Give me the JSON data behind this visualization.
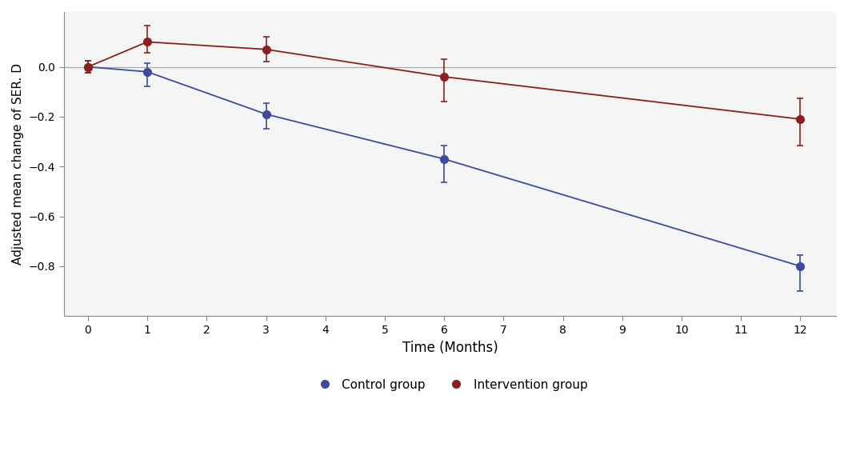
{
  "control_x": [
    0,
    1,
    3,
    6,
    12
  ],
  "control_y": [
    0.0,
    -0.02,
    -0.19,
    -0.37,
    -0.8
  ],
  "control_yerr_upper": [
    0.025,
    0.035,
    0.045,
    0.055,
    0.045
  ],
  "control_yerr_lower": [
    0.025,
    0.06,
    0.06,
    0.095,
    0.1
  ],
  "intervention_x": [
    0,
    1,
    3,
    6,
    12
  ],
  "intervention_y": [
    0.0,
    0.1,
    0.07,
    -0.04,
    -0.21
  ],
  "intervention_yerr_upper": [
    0.025,
    0.065,
    0.05,
    0.07,
    0.085
  ],
  "intervention_yerr_lower": [
    0.025,
    0.045,
    0.05,
    0.1,
    0.105
  ],
  "control_color": "#3d4b9e",
  "intervention_color": "#8b2020",
  "xlabel": "Time (Months)",
  "ylabel": "Adjusted mean change of SER. D",
  "xlim": [
    -0.4,
    12.6
  ],
  "ylim": [
    -1.0,
    0.22
  ],
  "yticks": [
    0.0,
    -0.2,
    -0.4,
    -0.6,
    -0.8
  ],
  "xticks": [
    0,
    1,
    2,
    3,
    4,
    5,
    6,
    7,
    8,
    9,
    10,
    11,
    12
  ],
  "legend_control": "Control group",
  "legend_intervention": "Intervention group",
  "background_color": "#ffffff",
  "plot_bg_color": "#f5f5f5",
  "zero_line_color": "#aaaaaa",
  "markersize": 7,
  "linewidth": 1.3,
  "capsize": 3,
  "capthick": 1.2,
  "elinewidth": 1.2
}
